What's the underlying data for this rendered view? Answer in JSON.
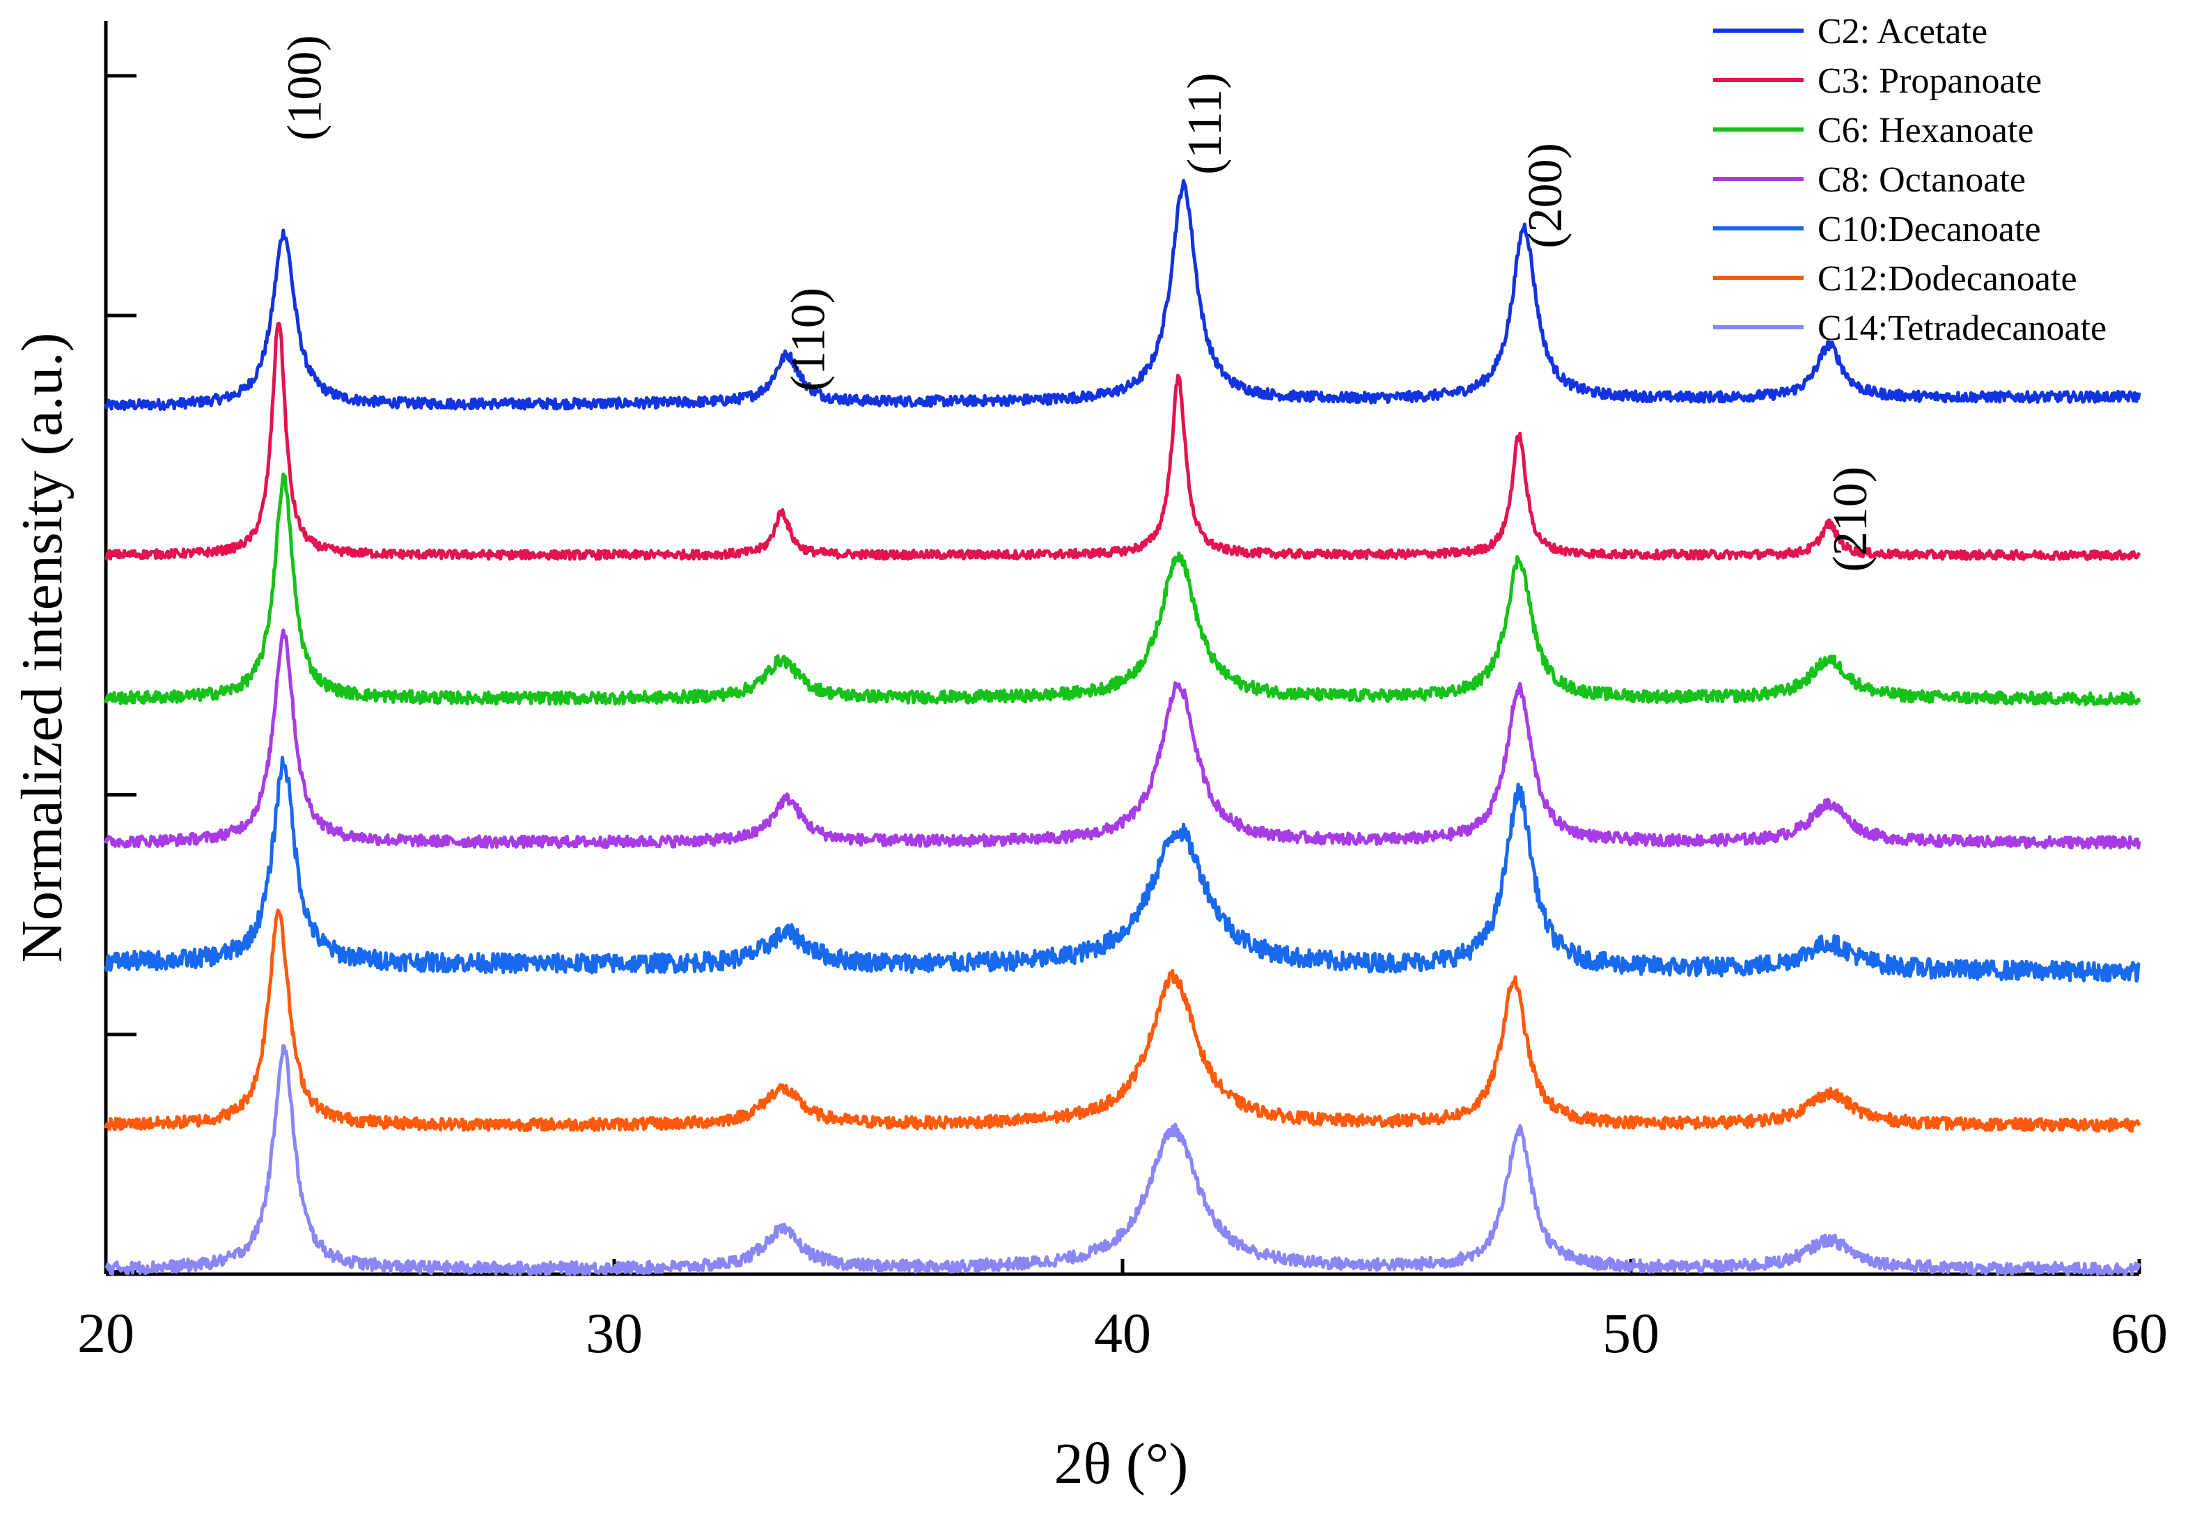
{
  "chart_data": {
    "type": "line",
    "title": "",
    "xlabel": "2θ (°)",
    "ylabel": "Normalized intensity (a.u.)",
    "xlim": [
      20,
      60
    ],
    "ylim": [
      0,
      5.2
    ],
    "xticks": [
      "20",
      "30",
      "40",
      "50",
      "60"
    ],
    "grid": false,
    "legend_position": "top-right",
    "peak_labels": [
      {
        "text": "(100)",
        "x": 23.9,
        "y": 4.95
      },
      {
        "text": "(110)",
        "x": 33.8,
        "y": 3.9
      },
      {
        "text": "(111)",
        "x": 41.6,
        "y": 4.8
      },
      {
        "text": "(200)",
        "x": 48.3,
        "y": 4.5
      },
      {
        "text": "(210)",
        "x": 54.3,
        "y": 3.15
      }
    ],
    "series": [
      {
        "name": "C2: Acetate",
        "color": "#1233e0",
        "baseline": 3.62,
        "noise": 0.012,
        "trend": 0.04,
        "peaks": [
          {
            "x": 23.5,
            "h": 0.72,
            "w": 0.26
          },
          {
            "x": 33.4,
            "h": 0.2,
            "w": 0.3
          },
          {
            "x": 41.2,
            "h": 0.9,
            "w": 0.3
          },
          {
            "x": 47.9,
            "h": 0.72,
            "w": 0.28
          },
          {
            "x": 53.9,
            "h": 0.22,
            "w": 0.3
          }
        ]
      },
      {
        "name": "C3: Propanoate",
        "color": "#e3134f",
        "baseline": 3.0,
        "noise": 0.01,
        "trend": 0.0,
        "peaks": [
          {
            "x": 23.4,
            "h": 0.98,
            "w": 0.16
          },
          {
            "x": 33.3,
            "h": 0.18,
            "w": 0.18
          },
          {
            "x": 41.1,
            "h": 0.74,
            "w": 0.17
          },
          {
            "x": 47.8,
            "h": 0.5,
            "w": 0.17
          },
          {
            "x": 53.9,
            "h": 0.13,
            "w": 0.2
          }
        ]
      },
      {
        "name": "C6: Hexanoate",
        "color": "#16c119",
        "baseline": 2.4,
        "noise": 0.014,
        "trend": 0.0,
        "peaks": [
          {
            "x": 23.5,
            "h": 0.92,
            "w": 0.22
          },
          {
            "x": 33.3,
            "h": 0.16,
            "w": 0.4
          },
          {
            "x": 41.1,
            "h": 0.6,
            "w": 0.42
          },
          {
            "x": 47.8,
            "h": 0.58,
            "w": 0.3
          },
          {
            "x": 53.9,
            "h": 0.16,
            "w": 0.45
          }
        ]
      },
      {
        "name": "C8: Octanoate",
        "color": "#a73ce6",
        "baseline": 1.8,
        "noise": 0.013,
        "trend": 0.0,
        "peaks": [
          {
            "x": 23.5,
            "h": 0.88,
            "w": 0.24
          },
          {
            "x": 33.4,
            "h": 0.18,
            "w": 0.35
          },
          {
            "x": 41.1,
            "h": 0.66,
            "w": 0.42
          },
          {
            "x": 47.8,
            "h": 0.64,
            "w": 0.3
          },
          {
            "x": 53.9,
            "h": 0.16,
            "w": 0.45
          }
        ]
      },
      {
        "name": "C10:Decanoate",
        "color": "#1969ee",
        "baseline": 1.3,
        "noise": 0.022,
        "trend": -0.04,
        "peaks": [
          {
            "x": 23.5,
            "h": 0.84,
            "w": 0.26
          },
          {
            "x": 33.4,
            "h": 0.13,
            "w": 0.5
          },
          {
            "x": 41.1,
            "h": 0.57,
            "w": 0.65
          },
          {
            "x": 47.8,
            "h": 0.73,
            "w": 0.32
          },
          {
            "x": 53.9,
            "h": 0.11,
            "w": 0.6
          }
        ]
      },
      {
        "name": "C12:Dodecanoate",
        "color": "#ff5a0d",
        "baseline": 0.62,
        "noise": 0.014,
        "trend": 0.0,
        "peaks": [
          {
            "x": 23.4,
            "h": 0.9,
            "w": 0.24
          },
          {
            "x": 33.3,
            "h": 0.15,
            "w": 0.45
          },
          {
            "x": 41.0,
            "h": 0.62,
            "w": 0.55
          },
          {
            "x": 47.7,
            "h": 0.6,
            "w": 0.3
          },
          {
            "x": 53.9,
            "h": 0.13,
            "w": 0.55
          }
        ]
      },
      {
        "name": "C14:Tetradecanoate",
        "color": "#8a86f6",
        "baseline": 0.02,
        "noise": 0.014,
        "trend": 0.0,
        "peaks": [
          {
            "x": 23.5,
            "h": 0.92,
            "w": 0.25
          },
          {
            "x": 33.3,
            "h": 0.16,
            "w": 0.45
          },
          {
            "x": 41.0,
            "h": 0.58,
            "w": 0.6
          },
          {
            "x": 47.8,
            "h": 0.58,
            "w": 0.3
          },
          {
            "x": 53.9,
            "h": 0.12,
            "w": 0.55
          }
        ]
      }
    ]
  }
}
